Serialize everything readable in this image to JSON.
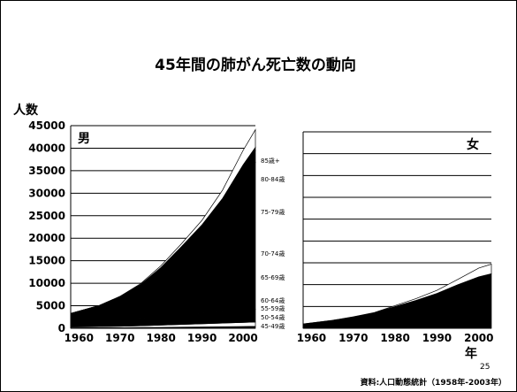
{
  "slide": {
    "title": "45年間の肺がん死亡数の動向",
    "source": "資料:人口動態統計（1958年-2003年）",
    "page_number": "25"
  },
  "chart_data": [
    {
      "type": "area",
      "panel": "男",
      "ylabel": "人数",
      "xlabel": "",
      "x": [
        1958,
        1965,
        1970,
        1975,
        1980,
        1985,
        1990,
        1995,
        2000,
        2003
      ],
      "xticks": [
        1960,
        1970,
        1980,
        1990,
        2000
      ],
      "yticks": [
        0,
        5000,
        10000,
        15000,
        20000,
        25000,
        30000,
        35000,
        40000,
        45000
      ],
      "xlim": [
        1958,
        2003
      ],
      "ylim": [
        0,
        45000
      ],
      "grid": true,
      "series": [
        {
          "name": "45-49歳",
          "values": [
            100,
            120,
            140,
            170,
            200,
            250,
            300,
            350,
            400,
            450
          ]
        },
        {
          "name": "50-54歳",
          "values": [
            200,
            250,
            300,
            400,
            500,
            600,
            700,
            800,
            900,
            950
          ]
        },
        {
          "name": "55-59歳",
          "values": [
            1000,
            1200,
            1400,
            1700,
            2000,
            2200,
            2400,
            2600,
            2800,
            2800
          ]
        },
        {
          "name": "60-64歳",
          "values": [
            1700,
            3000,
            4500,
            6500,
            9500,
            13500,
            17500,
            22500,
            29000,
            32600
          ]
        },
        {
          "name": "65-69歳",
          "values": [
            200,
            350,
            500,
            700,
            1000,
            1200,
            1600,
            2000,
            2500,
            2600
          ]
        },
        {
          "name": "70-74歳",
          "values": [
            100,
            150,
            200,
            250,
            300,
            400,
            500,
            600,
            700,
            800
          ]
        },
        {
          "name": "75-79歳",
          "values": [
            0,
            0,
            0,
            0,
            0,
            0,
            0,
            0,
            0,
            0
          ]
        },
        {
          "name": "80-84歳",
          "values": [
            0,
            0,
            0,
            0,
            0,
            0,
            0,
            0,
            0,
            0
          ]
        },
        {
          "name": "85歳+",
          "values": [
            0,
            30,
            60,
            180,
            400,
            650,
            1000,
            1850,
            3200,
            3900
          ]
        }
      ],
      "series_colors": [
        "#000000",
        "#ffffff",
        "#000000",
        "#000000",
        "#000000",
        "#000000",
        "#000000",
        "#000000",
        "#ffffff"
      ]
    },
    {
      "type": "area",
      "panel": "女",
      "xlabel": "年",
      "x": [
        1958,
        1965,
        1970,
        1975,
        1980,
        1985,
        1990,
        1995,
        2000,
        2003
      ],
      "xticks": [
        1960,
        1970,
        1980,
        1990,
        2000
      ],
      "xlim": [
        1958,
        2003
      ],
      "ylim": [
        0,
        45000
      ],
      "grid": true,
      "series": [
        {
          "name": "total",
          "values": [
            1000,
            1800,
            2600,
            3500,
            5000,
            6400,
            8000,
            10000,
            11800,
            12500
          ]
        },
        {
          "name": "85歳+",
          "values": [
            0,
            20,
            50,
            100,
            200,
            400,
            700,
            1200,
            2000,
            2200
          ]
        }
      ],
      "series_colors": [
        "#000000",
        "#ffffff"
      ]
    }
  ],
  "age_labels": [
    "85歳+",
    "80-84歳",
    "75-79歳",
    "70-74歳",
    "65-69歳",
    "60-64歳",
    "55-59歳",
    "50-54歳",
    "45-49歳"
  ]
}
